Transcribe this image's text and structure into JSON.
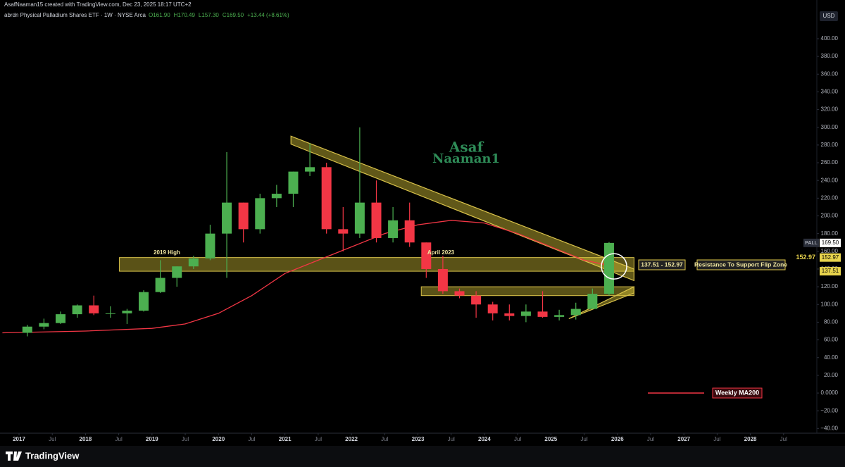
{
  "header": {
    "credit": "AsafNaaman15 created with TradingView.com, Dec 23, 2025 18:17 UTC+2"
  },
  "footer": {
    "brand": "TradingView"
  },
  "watermark": [
    "Asaf",
    "Naaman1"
  ],
  "chart_data": {
    "type": "candlestick",
    "title": "abrdn Physical Palladium Shares ETF · 1W · NYSE Arca",
    "ohlc_labels": [
      "O161.90",
      "H170.49",
      "L157.30",
      "C169.50"
    ],
    "change": "+13.44 (+8.61%)",
    "currency": "USD",
    "symbol": "PALL",
    "last_price": {
      "value": 169.5,
      "label": "169.50"
    },
    "up_color": "#4caf50",
    "down_color": "#f23645",
    "x": [
      2017.125,
      2017.375,
      2017.625,
      2017.875,
      2018.125,
      2018.375,
      2018.625,
      2018.875,
      2019.125,
      2019.375,
      2019.625,
      2019.875,
      2020.125,
      2020.375,
      2020.625,
      2020.875,
      2021.125,
      2021.375,
      2021.625,
      2021.875,
      2022.125,
      2022.375,
      2022.625,
      2022.875,
      2023.125,
      2023.375,
      2023.625,
      2023.875,
      2024.125,
      2024.375,
      2024.625,
      2024.875,
      2025.125,
      2025.375,
      2025.625,
      2025.875
    ],
    "open": [
      68,
      75,
      79,
      89,
      99,
      90,
      90,
      93,
      114,
      130,
      143,
      152,
      180,
      215,
      185,
      220,
      225,
      250,
      255,
      185,
      180,
      215,
      175,
      195,
      170,
      140,
      115,
      110,
      100,
      90,
      87,
      92,
      86,
      88,
      95,
      112
    ],
    "high": [
      77,
      84,
      92,
      100,
      110,
      98,
      95,
      116,
      150,
      143,
      155,
      190,
      272,
      215,
      225,
      235,
      250,
      282,
      260,
      210,
      300,
      240,
      210,
      215,
      170,
      155,
      118,
      115,
      103,
      100,
      100,
      115,
      94,
      102,
      118,
      170.49
    ],
    "low": [
      64,
      72,
      78,
      85,
      88,
      85,
      78,
      92,
      113,
      120,
      140,
      150,
      130,
      170,
      180,
      210,
      210,
      245,
      180,
      160,
      175,
      170,
      170,
      165,
      130,
      112,
      107,
      85,
      82,
      82,
      80,
      85,
      82,
      83,
      95,
      110
    ],
    "close": [
      75,
      79,
      89,
      99,
      90,
      90,
      93,
      114,
      130,
      143,
      152,
      180,
      215,
      185,
      220,
      225,
      250,
      255,
      185,
      180,
      215,
      175,
      195,
      170,
      140,
      115,
      110,
      100,
      90,
      87,
      92,
      86,
      88,
      95,
      112,
      169.5
    ],
    "ma": {
      "name": "Weekly MA200",
      "color": "#f23645",
      "x": [
        2016.75,
        2018,
        2019,
        2019.5,
        2020,
        2020.5,
        2021,
        2021.5,
        2022,
        2022.5,
        2023,
        2023.5,
        2024,
        2024.5,
        2025,
        2025.5,
        2025.95
      ],
      "values": [
        68,
        70,
        73,
        78,
        90,
        110,
        135,
        150,
        165,
        180,
        190,
        195,
        192,
        180,
        165,
        150,
        143
      ]
    },
    "zones": [
      {
        "from": 2018.51,
        "to": 2026.25,
        "low": 137.51,
        "high": 152.97,
        "label": "137.51 - 152.97",
        "note": "Resistance To Support Flip Zone"
      },
      {
        "from": 2023.05,
        "to": 2026.25,
        "low": 110,
        "high": 120
      }
    ],
    "channels": [
      {
        "x": [
          2021.09,
          2026.25
        ],
        "upper": [
          290,
          140
        ],
        "lower": [
          281,
          127
        ]
      },
      {
        "x": [
          2025.27,
          2026.25
        ],
        "upper": [
          84,
          120
        ],
        "lower": [
          84,
          113
        ]
      }
    ],
    "highlight": {
      "x": 2025.95,
      "y": 143
    },
    "notes": [
      "2019 High",
      "April 2023"
    ],
    "xlim": [
      2016.714,
      2029.0
    ],
    "xticks": [
      2017,
      {
        "value": 2017.5,
        "label": "Jul"
      },
      2018,
      {
        "value": 2018.5,
        "label": "Jul"
      },
      2019,
      {
        "value": 2019.5,
        "label": "Jul"
      },
      2020,
      {
        "value": 2020.5,
        "label": "Jul"
      },
      2021,
      {
        "value": 2021.5,
        "label": "Jul"
      },
      2022,
      {
        "value": 2022.5,
        "label": "Jul"
      },
      2023,
      {
        "value": 2023.5,
        "label": "Jul"
      },
      2024,
      {
        "value": 2024.5,
        "label": "Jul"
      },
      2025,
      {
        "value": 2025.5,
        "label": "Jul"
      },
      2026,
      {
        "value": 2026.5,
        "label": "Jul"
      },
      2027,
      {
        "value": 2027.5,
        "label": "Jul"
      },
      2028,
      {
        "value": 2028.5,
        "label": "Jul"
      }
    ],
    "ylim": [
      -45.3,
      443.7
    ],
    "yticks": [
      {
        "value": 400,
        "label": "400.00"
      },
      {
        "value": 380,
        "label": "380.00"
      },
      {
        "value": 360,
        "label": "360.00"
      },
      {
        "value": 340,
        "label": "340.00"
      },
      {
        "value": 320,
        "label": "320.00"
      },
      {
        "value": 300,
        "label": "300.00"
      },
      {
        "value": 280,
        "label": "280.00"
      },
      {
        "value": 260,
        "label": "260.00"
      },
      {
        "value": 240,
        "label": "240.00"
      },
      {
        "value": 220,
        "label": "220.00"
      },
      {
        "value": 200,
        "label": "200.00"
      },
      {
        "value": 180,
        "label": "180.00"
      },
      {
        "value": 160,
        "label": "160.00"
      },
      {
        "value": 140,
        "label": "140.00"
      },
      {
        "value": 120,
        "label": "120.00"
      },
      {
        "value": 100,
        "label": "100.00"
      },
      {
        "value": 80,
        "label": "80.00"
      },
      {
        "value": 60,
        "label": "60.00"
      },
      {
        "value": 40,
        "label": "40.00"
      },
      {
        "value": 20,
        "label": "20.00"
      },
      {
        "value": 0,
        "label": "0.0000"
      },
      {
        "value": -20,
        "label": "−20.00"
      },
      {
        "value": -40,
        "label": "−40.00"
      }
    ],
    "grid": false
  }
}
